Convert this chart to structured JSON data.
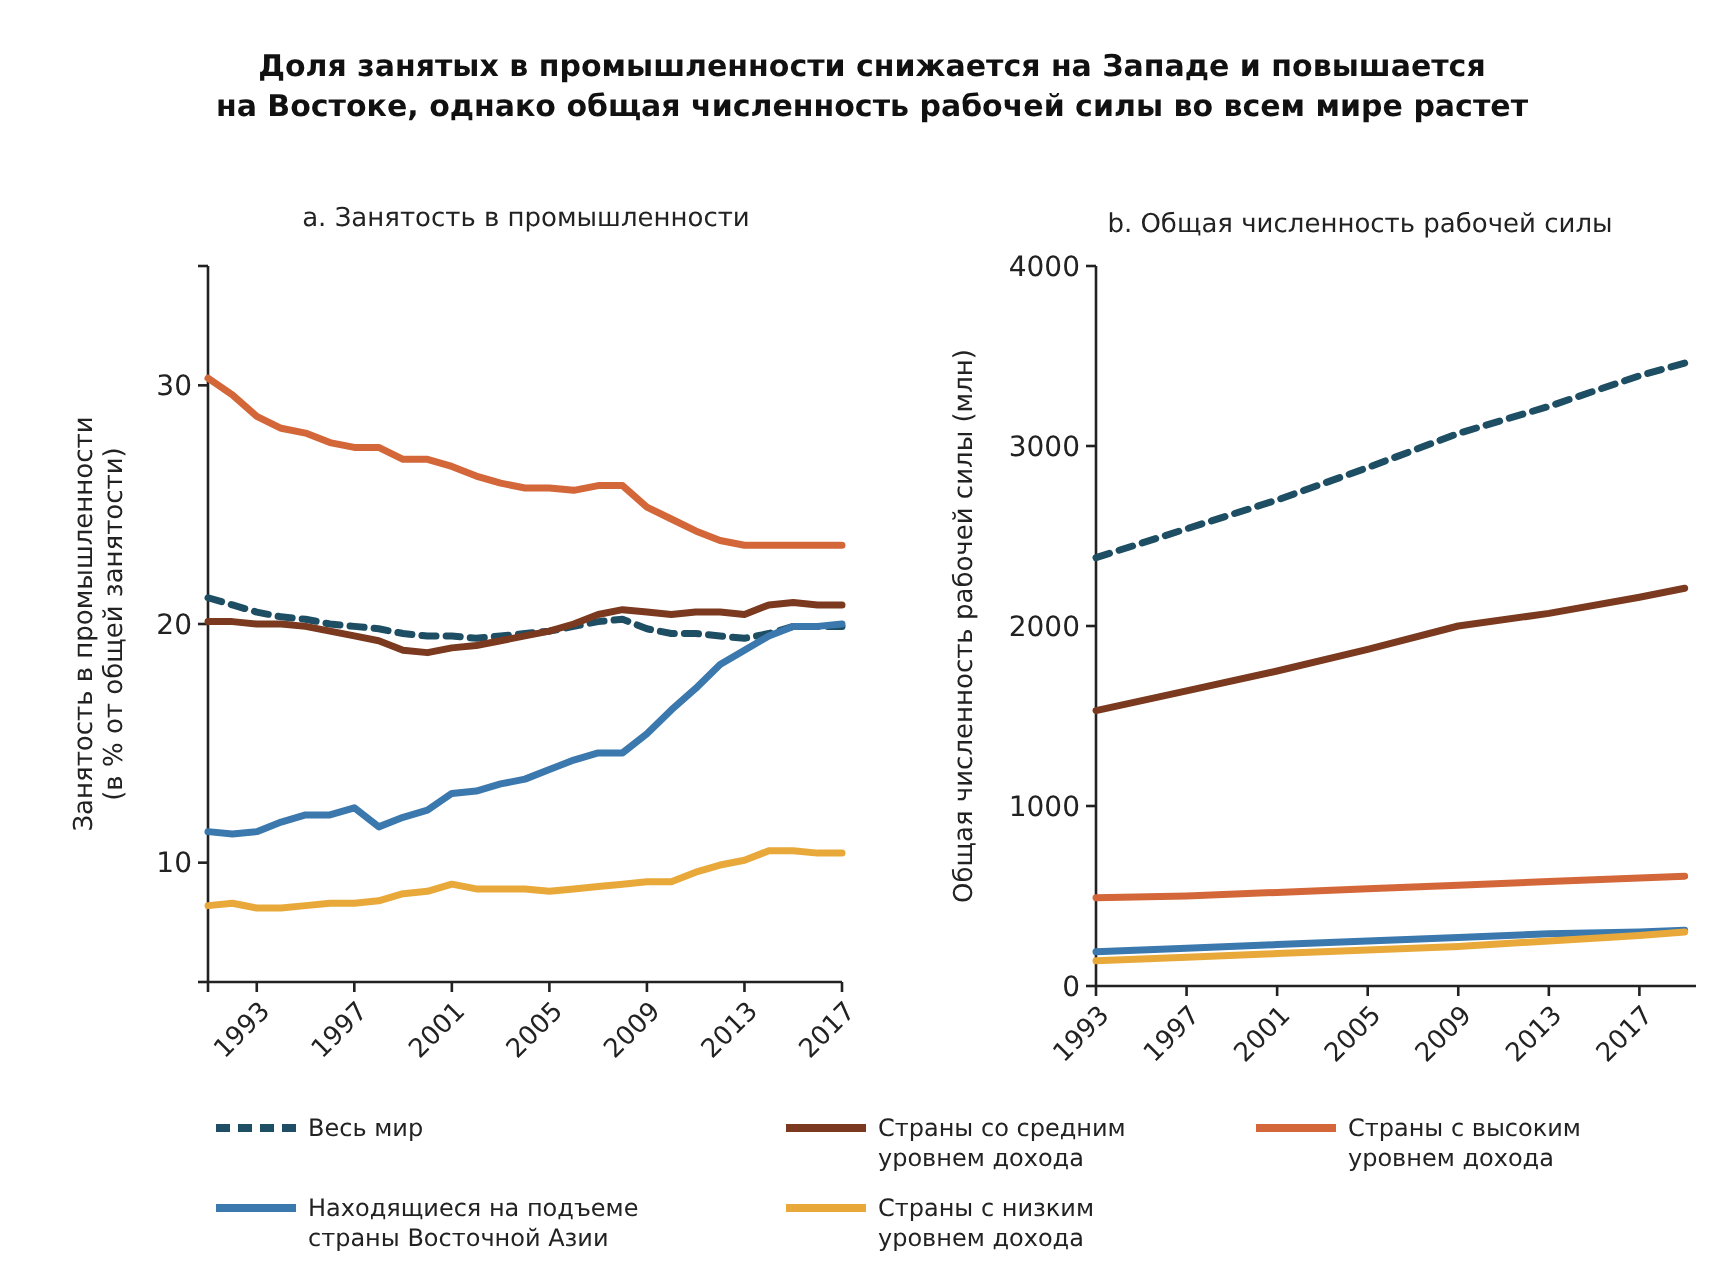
{
  "chart_data": [
    {
      "type": "line",
      "title": "Доля занятых в промышленности снижается на Западе и повышается\nна Востоке, однако общая численность рабочей силы во всем мире растет",
      "subtitle": "a. Занятость в промышленности",
      "ylabel": "Занятость в промышленности\n(в % от общей занятости)",
      "x": [
        1991,
        1992,
        1993,
        1994,
        1995,
        1996,
        1997,
        1998,
        1999,
        2000,
        2001,
        2002,
        2003,
        2004,
        2005,
        2006,
        2007,
        2008,
        2009,
        2010,
        2011,
        2012,
        2013,
        2014,
        2015,
        2016,
        2017
      ],
      "xlim": [
        1991,
        2017
      ],
      "xticks": [
        {
          "value": 1991,
          "label": null
        },
        1993,
        1997,
        2001,
        2005,
        2009,
        2013,
        2017
      ],
      "ylim": [
        5,
        35
      ],
      "yticks": [
        {
          "value": 5,
          "label": null
        },
        10,
        20,
        30,
        {
          "value": 35,
          "label": null
        }
      ],
      "grid": false,
      "legend": "bottom",
      "series": [
        {
          "name": "Весь мир",
          "color": "#1d4e63",
          "line_style": "dashed",
          "values": [
            21.1,
            20.8,
            20.5,
            20.3,
            20.2,
            20.0,
            19.9,
            19.8,
            19.6,
            19.5,
            19.5,
            19.4,
            19.5,
            19.6,
            19.7,
            19.9,
            20.1,
            20.2,
            19.8,
            19.6,
            19.6,
            19.5,
            19.4,
            19.6,
            19.9,
            19.9,
            19.9
          ]
        },
        {
          "name": "Страны со средним уровнем дохода",
          "color": "#7b3a1f",
          "line_style": "solid",
          "values": [
            20.1,
            20.1,
            20.0,
            20.0,
            19.9,
            19.7,
            19.5,
            19.3,
            18.9,
            18.8,
            19.0,
            19.1,
            19.3,
            19.5,
            19.7,
            20.0,
            20.4,
            20.6,
            20.5,
            20.4,
            20.5,
            20.5,
            20.4,
            20.8,
            20.9,
            20.8,
            20.8
          ]
        },
        {
          "name": "Страны с высоким уровнем дохода",
          "color": "#d4673a",
          "line_style": "solid",
          "values": [
            30.3,
            29.6,
            28.7,
            28.2,
            28.0,
            27.6,
            27.4,
            27.4,
            26.9,
            26.9,
            26.6,
            26.2,
            25.9,
            25.7,
            25.7,
            25.6,
            25.8,
            25.8,
            24.9,
            24.4,
            23.9,
            23.5,
            23.3,
            23.3,
            23.3,
            23.3,
            23.3
          ]
        },
        {
          "name": "Находящиеся на подъеме страны Восточной Азии",
          "color": "#3b78ad",
          "line_style": "solid",
          "values": [
            11.3,
            11.2,
            11.3,
            11.7,
            12.0,
            12.0,
            12.3,
            11.5,
            11.9,
            12.2,
            12.9,
            13.0,
            13.3,
            13.5,
            13.9,
            14.3,
            14.6,
            14.6,
            15.4,
            16.4,
            17.3,
            18.3,
            18.9,
            19.5,
            19.9,
            19.9,
            20.0
          ]
        },
        {
          "name": "Страны с низким уровнем дохода",
          "color": "#e8a93a",
          "line_style": "solid",
          "values": [
            8.2,
            8.3,
            8.1,
            8.1,
            8.2,
            8.3,
            8.3,
            8.4,
            8.7,
            8.8,
            9.1,
            8.9,
            8.9,
            8.9,
            8.8,
            8.9,
            9.0,
            9.1,
            9.2,
            9.2,
            9.6,
            9.9,
            10.1,
            10.5,
            10.5,
            10.4,
            10.4
          ]
        }
      ]
    },
    {
      "type": "line",
      "title": "b. Общая численность рабочей силы",
      "ylabel": "Общая численность рабочей силы (млн)",
      "x": [
        1993,
        1997,
        2001,
        2005,
        2009,
        2013,
        2017,
        2019
      ],
      "xlim": [
        1993,
        2019.5
      ],
      "xticks": [
        1993,
        1997,
        2001,
        2005,
        2009,
        2013,
        2017
      ],
      "ylim": [
        0,
        4000
      ],
      "yticks": [
        0,
        1000,
        2000,
        3000,
        4000
      ],
      "grid": false,
      "series": [
        {
          "color": "#1d4e63",
          "line_style": "dashed",
          "values": [
            2380,
            2540,
            2700,
            2880,
            3070,
            3220,
            3390,
            3460
          ]
        },
        {
          "color": "#7b3a1f",
          "line_style": "solid",
          "values": [
            1530,
            1640,
            1750,
            1870,
            2000,
            2070,
            2160,
            2210
          ]
        },
        {
          "color": "#d4673a",
          "line_style": "solid",
          "values": [
            490,
            500,
            520,
            540,
            560,
            580,
            600,
            610
          ]
        },
        {
          "color": "#3b78ad",
          "line_style": "solid",
          "values": [
            190,
            210,
            230,
            250,
            270,
            290,
            300,
            310
          ]
        },
        {
          "color": "#e8a93a",
          "line_style": "solid",
          "values": [
            140,
            160,
            180,
            200,
            220,
            250,
            280,
            300
          ]
        }
      ]
    }
  ]
}
